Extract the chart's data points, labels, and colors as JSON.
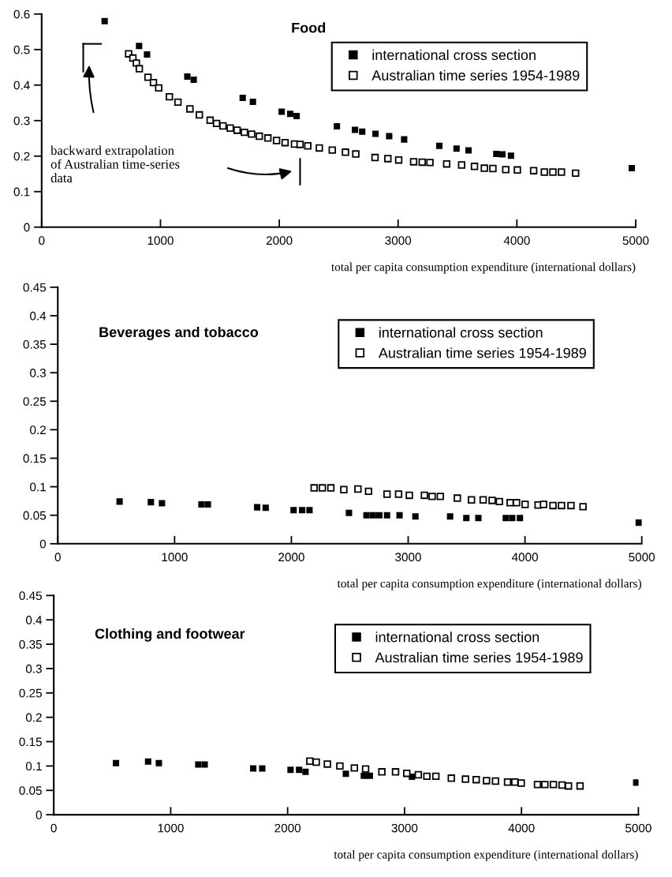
{
  "chart_data": [
    {
      "type": "scatter",
      "title": "Food",
      "xlabel": "total per capita consumption expenditure (international dollars)",
      "xlim": [
        0,
        5000
      ],
      "xticks": [
        0,
        1000,
        2000,
        3000,
        4000,
        5000
      ],
      "ylim": [
        0,
        0.6
      ],
      "yticks": [
        0,
        0.1,
        0.2,
        0.3,
        0.4,
        0.5,
        0.6
      ],
      "legend": "top right",
      "marker": "square",
      "grid": false,
      "annotations": [
        "backward extrapolation\nof Australian time-series\ndata"
      ],
      "series": [
        {
          "name": "international cross section",
          "color": "#000000",
          "x": [
            530,
            820,
            887,
            1226,
            1280,
            1692,
            1778,
            2020,
            2092,
            2146,
            2485,
            2637,
            2698,
            2810,
            2925,
            3051,
            3347,
            3492,
            3593,
            3827,
            3878,
            3950,
            4967
          ],
          "values": [
            0.58,
            0.51,
            0.486,
            0.424,
            0.415,
            0.364,
            0.353,
            0.325,
            0.319,
            0.313,
            0.284,
            0.274,
            0.269,
            0.263,
            0.256,
            0.247,
            0.229,
            0.221,
            0.216,
            0.206,
            0.205,
            0.201,
            0.166
          ]
        },
        {
          "name": "Australian time series 1954-1989",
          "color": "#000000",
          "x": [
            732,
            768,
            797,
            822,
            895,
            941,
            985,
            1075,
            1147,
            1248,
            1327,
            1418,
            1472,
            1526,
            1587,
            1645,
            1706,
            1767,
            1832,
            1904,
            1977,
            2049,
            2128,
            2175,
            2240,
            2337,
            2446,
            2557,
            2644,
            2806,
            2914,
            3005,
            3131,
            3203,
            3268,
            3409,
            3535,
            3643,
            3726,
            3798,
            3906,
            4004,
            4141,
            4231,
            4303,
            4375,
            4494
          ],
          "values": [
            0.488,
            0.476,
            0.462,
            0.446,
            0.422,
            0.407,
            0.392,
            0.367,
            0.352,
            0.333,
            0.316,
            0.301,
            0.292,
            0.285,
            0.279,
            0.273,
            0.267,
            0.262,
            0.256,
            0.251,
            0.244,
            0.238,
            0.234,
            0.233,
            0.229,
            0.223,
            0.217,
            0.211,
            0.206,
            0.196,
            0.193,
            0.189,
            0.184,
            0.183,
            0.182,
            0.178,
            0.175,
            0.171,
            0.166,
            0.165,
            0.162,
            0.161,
            0.159,
            0.155,
            0.155,
            0.155,
            0.152
          ]
        }
      ]
    },
    {
      "type": "scatter",
      "title": "Beverages and tobacco",
      "xlabel": "total per capita consumption expenditure (international dollars)",
      "xlim": [
        0,
        5000
      ],
      "xticks": [
        0,
        1000,
        2000,
        3000,
        4000,
        5000
      ],
      "ylim": [
        0,
        0.45
      ],
      "yticks": [
        0,
        0.05,
        0.1,
        0.15,
        0.2,
        0.25,
        0.3,
        0.35,
        0.4,
        0.45
      ],
      "legend": "top right",
      "marker": "square",
      "grid": false,
      "series": [
        {
          "name": "international cross section",
          "color": "#000000",
          "x": [
            529,
            797,
            892,
            1230,
            1285,
            1707,
            1780,
            2019,
            2092,
            2155,
            2493,
            2643,
            2698,
            2753,
            2819,
            2926,
            3062,
            3359,
            3498,
            3601,
            3836,
            3891,
            3957,
            4974
          ],
          "values": [
            0.074,
            0.073,
            0.071,
            0.069,
            0.069,
            0.064,
            0.063,
            0.059,
            0.059,
            0.059,
            0.054,
            0.05,
            0.05,
            0.05,
            0.05,
            0.05,
            0.048,
            0.048,
            0.045,
            0.045,
            0.045,
            0.045,
            0.045,
            0.037
          ]
        },
        {
          "name": "Australian time series 1954-1989",
          "color": "#000000",
          "x": [
            2195,
            2265,
            2338,
            2449,
            2570,
            2661,
            2819,
            2918,
            3010,
            3139,
            3205,
            3275,
            3421,
            3542,
            3642,
            3719,
            3781,
            3873,
            3928,
            4001,
            4112,
            4159,
            4240,
            4313,
            4394,
            4497
          ],
          "values": [
            0.098,
            0.098,
            0.098,
            0.095,
            0.096,
            0.092,
            0.087,
            0.087,
            0.085,
            0.085,
            0.083,
            0.083,
            0.08,
            0.077,
            0.077,
            0.076,
            0.074,
            0.072,
            0.072,
            0.069,
            0.068,
            0.069,
            0.067,
            0.067,
            0.067,
            0.065
          ]
        }
      ]
    },
    {
      "type": "scatter",
      "title": "Clothing and footwear",
      "xlabel": "total per capita consumption expenditure (international dollars)",
      "xlim": [
        0,
        5000
      ],
      "xticks": [
        0,
        1000,
        2000,
        3000,
        4000,
        5000
      ],
      "ylim": [
        0,
        0.45
      ],
      "yticks": [
        0,
        0.05,
        0.1,
        0.15,
        0.2,
        0.25,
        0.3,
        0.35,
        0.4,
        0.45
      ],
      "legend": "top right",
      "marker": "square",
      "grid": false,
      "series": [
        {
          "name": "international cross section",
          "color": "#000000",
          "x": [
            532,
            807,
            899,
            1236,
            1291,
            1706,
            1783,
            2025,
            2098,
            2153,
            2498,
            2652,
            2703,
            3063,
            4981
          ],
          "values": [
            0.106,
            0.109,
            0.106,
            0.103,
            0.103,
            0.095,
            0.095,
            0.092,
            0.092,
            0.088,
            0.084,
            0.08,
            0.08,
            0.078,
            0.066
          ]
        },
        {
          "name": "Australian time series 1954-1989",
          "color": "#000000",
          "x": [
            2190,
            2245,
            2340,
            2447,
            2571,
            2667,
            2806,
            2923,
            3019,
            3118,
            3191,
            3268,
            3400,
            3521,
            3613,
            3701,
            3778,
            3881,
            3943,
            3998,
            4137,
            4200,
            4273,
            4347,
            4402,
            4501
          ],
          "values": [
            0.11,
            0.108,
            0.104,
            0.1,
            0.096,
            0.094,
            0.088,
            0.088,
            0.085,
            0.082,
            0.079,
            0.079,
            0.075,
            0.073,
            0.072,
            0.07,
            0.069,
            0.067,
            0.067,
            0.065,
            0.062,
            0.062,
            0.062,
            0.061,
            0.059,
            0.059
          ]
        }
      ]
    }
  ]
}
